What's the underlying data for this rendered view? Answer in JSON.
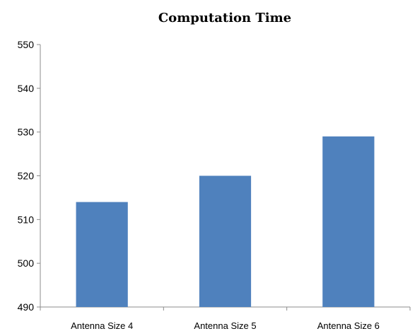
{
  "chart_data": {
    "type": "bar",
    "title": "Computation Time",
    "xlabel": "",
    "ylabel": "",
    "categories": [
      "Antenna Size 4",
      "Antenna Size 5",
      "Antenna Size 6"
    ],
    "values": [
      514,
      520,
      529
    ],
    "ylim": [
      490,
      550
    ],
    "yticks": [
      490,
      500,
      510,
      520,
      530,
      540,
      550
    ],
    "grid": false,
    "legend": "none",
    "bar_color": "#4f81bd"
  }
}
